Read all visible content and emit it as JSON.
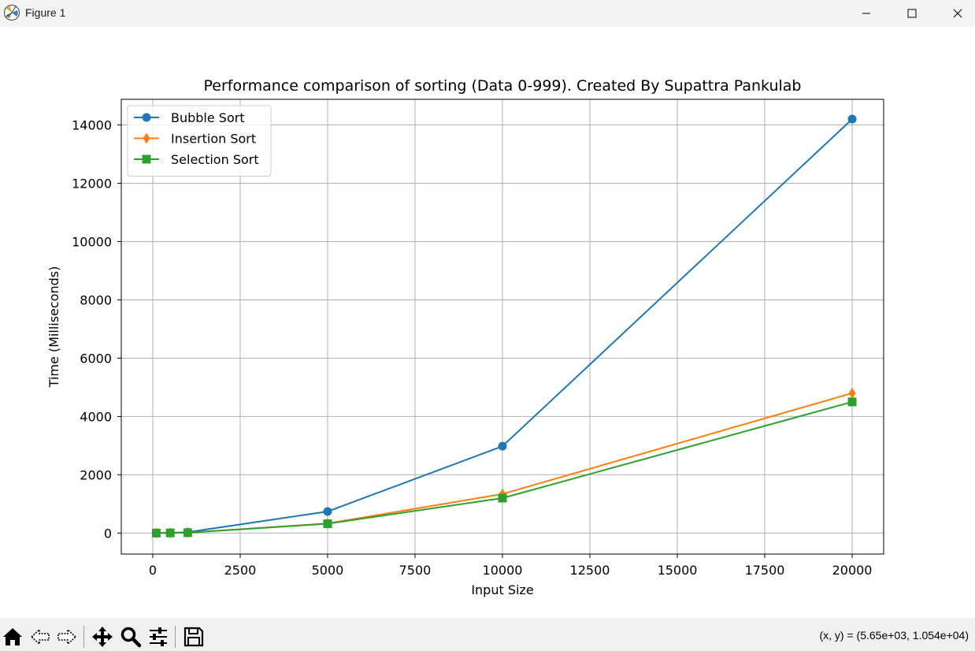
{
  "window": {
    "title": "Figure 1",
    "controls": {
      "minimize": "minimize-icon",
      "maximize": "maximize-icon",
      "close": "close-icon"
    }
  },
  "toolbar": {
    "tools": [
      "home-icon",
      "back-arrow-icon",
      "forward-arrow-icon",
      "pan-move-icon",
      "zoom-magnifier-icon",
      "configure-subplots-icon",
      "save-floppy-icon"
    ],
    "coords_text": "(x, y) = (5.65e+03, 1.054e+04)"
  },
  "chart_data": {
    "type": "line",
    "title": "Performance comparison of sorting (Data 0-999). Created By Supattra Pankulab",
    "xlabel": "Input Size",
    "ylabel": "Time (Milliseconds)",
    "xlim": [
      -900,
      20900
    ],
    "ylim": [
      -720,
      14880
    ],
    "xticks": [
      0,
      2500,
      5000,
      7500,
      10000,
      12500,
      15000,
      17500,
      20000
    ],
    "yticks": [
      0,
      2000,
      4000,
      6000,
      8000,
      10000,
      12000,
      14000
    ],
    "grid": true,
    "legend_position": "top-left",
    "x": [
      100,
      500,
      1000,
      5000,
      10000,
      20000
    ],
    "series": [
      {
        "name": "Bubble Sort",
        "color": "#1f77b4",
        "marker": "circle",
        "values": [
          1,
          8,
          30,
          740,
          2980,
          14200
        ]
      },
      {
        "name": "Insertion Sort",
        "color": "#ff7f0e",
        "marker": "diamond",
        "values": [
          1,
          5,
          14,
          330,
          1340,
          4800
        ]
      },
      {
        "name": "Selection Sort",
        "color": "#2ca02c",
        "marker": "square",
        "values": [
          1,
          5,
          13,
          320,
          1200,
          4500
        ]
      }
    ]
  }
}
